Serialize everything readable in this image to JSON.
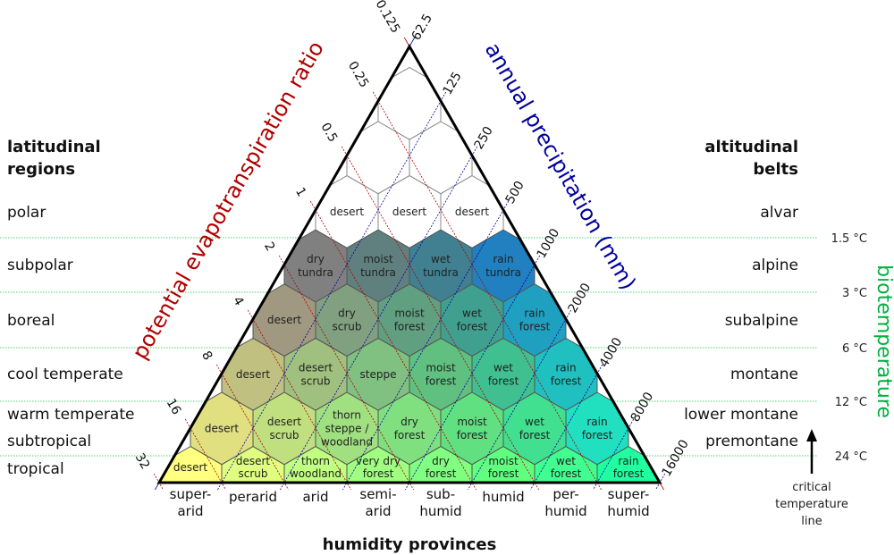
{
  "left_header": [
    "latitudinal",
    "regions"
  ],
  "right_header": [
    "altitudinal",
    "belts"
  ],
  "latitudinal_regions": [
    "polar",
    "subpolar",
    "boreal",
    "cool temperate",
    "warm temperate",
    "subtropical",
    "tropical"
  ],
  "altitudinal_belts": [
    "alvar",
    "alpine",
    "subalpine",
    "montane",
    "lower montane",
    "premontane"
  ],
  "biotemperature": {
    "title": "biotemperature",
    "lines": [
      "1.5 °C",
      "3 °C",
      "6 °C",
      "12 °C",
      "24 °C"
    ],
    "critical_label": [
      "critical",
      "temperature",
      "line"
    ]
  },
  "pet_axis": {
    "title": "potential evapotranspiration ratio",
    "ticks": [
      "0.125",
      "0.25",
      "0.5",
      "1",
      "2",
      "4",
      "8",
      "16",
      "32"
    ]
  },
  "precip_axis": {
    "title": "annual precipitation (mm)",
    "ticks": [
      "62.5",
      "125",
      "250",
      "500",
      "1000",
      "2000",
      "4000",
      "8000",
      "16000"
    ]
  },
  "humidity": {
    "title": "humidity provinces",
    "provinces": [
      [
        "super-",
        "arid"
      ],
      [
        "perarid"
      ],
      [
        "arid"
      ],
      [
        "semi-",
        "arid"
      ],
      [
        "sub-",
        "humid"
      ],
      [
        "humid"
      ],
      [
        "per-",
        "humid"
      ],
      [
        "super-",
        "humid"
      ]
    ]
  },
  "colors": {
    "pet": "#b00000",
    "precip": "#0000a0",
    "temp": "#00b040",
    "grid": "#55cc77"
  },
  "zones": [
    [
      {
        "l": [
          "desert"
        ],
        "c": "#ffffff"
      },
      {
        "l": [
          "desert"
        ],
        "c": "#ffffff"
      },
      {
        "l": [
          "desert"
        ],
        "c": "#ffffff"
      }
    ],
    [
      {
        "l": [
          "dry",
          "tundra"
        ],
        "c": "#808080"
      },
      {
        "l": [
          "moist",
          "tundra"
        ],
        "c": "#608080"
      },
      {
        "l": [
          "wet",
          "tundra"
        ],
        "c": "#408090"
      },
      {
        "l": [
          "rain",
          "tundra"
        ],
        "c": "#2080c0"
      }
    ],
    [
      {
        "l": [
          "desert"
        ],
        "c": "#a09880"
      },
      {
        "l": [
          "dry",
          "scrub"
        ],
        "c": "#80a080"
      },
      {
        "l": [
          "moist",
          "forest"
        ],
        "c": "#60a080"
      },
      {
        "l": [
          "wet",
          "forest"
        ],
        "c": "#40a090"
      },
      {
        "l": [
          "rain",
          "forest"
        ],
        "c": "#20a0c0"
      }
    ],
    [
      {
        "l": [
          "desert"
        ],
        "c": "#c0c080"
      },
      {
        "l": [
          "desert",
          "scrub"
        ],
        "c": "#a0c080"
      },
      {
        "l": [
          "steppe"
        ],
        "c": "#80c080"
      },
      {
        "l": [
          "moist",
          "forest"
        ],
        "c": "#60c080"
      },
      {
        "l": [
          "wet",
          "forest"
        ],
        "c": "#40c090"
      },
      {
        "l": [
          "rain",
          "forest"
        ],
        "c": "#20c0c0"
      }
    ],
    [
      {
        "l": [
          "desert"
        ],
        "c": "#e0e080"
      },
      {
        "l": [
          "desert",
          "scrub"
        ],
        "c": "#c0e080"
      },
      {
        "l": [
          "thorn",
          "steppe /",
          "woodland"
        ],
        "c": "#a0e080"
      },
      {
        "l": [
          "dry",
          "forest"
        ],
        "c": "#80e080"
      },
      {
        "l": [
          "moist",
          "forest"
        ],
        "c": "#60e080"
      },
      {
        "l": [
          "wet",
          "forest"
        ],
        "c": "#40e090"
      },
      {
        "l": [
          "rain",
          "forest"
        ],
        "c": "#20e0c0"
      }
    ],
    [
      {
        "l": [
          "desert"
        ],
        "c": "#ffff80"
      },
      {
        "l": [
          "desert",
          "scrub"
        ],
        "c": "#e0ff80"
      },
      {
        "l": [
          "thorn",
          "woodland"
        ],
        "c": "#c0ff80"
      },
      {
        "l": [
          "very dry",
          "forest"
        ],
        "c": "#a0ff80"
      },
      {
        "l": [
          "dry",
          "forest"
        ],
        "c": "#80ff80"
      },
      {
        "l": [
          "moist",
          "forest"
        ],
        "c": "#60ff80"
      },
      {
        "l": [
          "wet",
          "forest"
        ],
        "c": "#40ff90"
      },
      {
        "l": [
          "rain",
          "forest"
        ],
        "c": "#20ffa0"
      }
    ]
  ]
}
